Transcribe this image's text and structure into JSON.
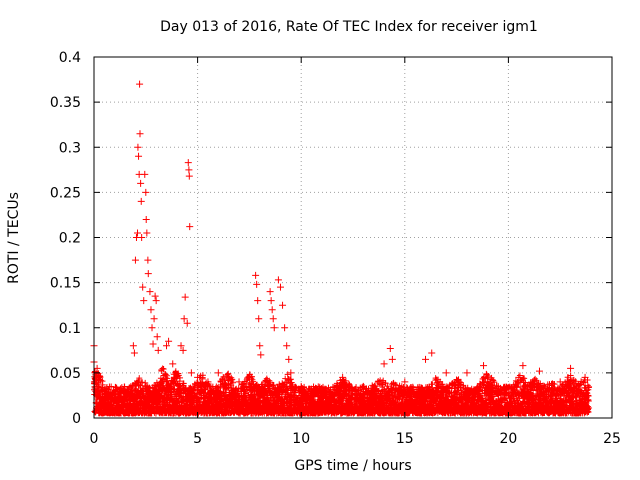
{
  "chart_data": {
    "type": "scatter",
    "title": "Day 013 of 2016, Rate Of TEC Index for receiver igm1",
    "xlabel": "GPS time / hours",
    "ylabel": "ROTI / TECUs",
    "xlim": [
      0,
      25
    ],
    "ylim": [
      0,
      0.4
    ],
    "x_ticks": [
      0,
      5,
      10,
      15,
      20,
      25
    ],
    "x_tick_labels": [
      "0",
      "5",
      "10",
      "15",
      "20",
      "25"
    ],
    "y_ticks": [
      0,
      0.05,
      0.1,
      0.15,
      0.2,
      0.25,
      0.3,
      0.35,
      0.4
    ],
    "y_tick_labels": [
      "0",
      "0.05",
      "0.1",
      "0.15",
      "0.2",
      "0.25",
      "0.3",
      "0.35",
      "0.4"
    ],
    "grid": true,
    "marker": "+",
    "color": "#ff0000",
    "series": [
      {
        "name": "ROTI",
        "points": [
          [
            0.0,
            0.08
          ],
          [
            0.0,
            0.062
          ],
          [
            0.05,
            0.05
          ],
          [
            0.1,
            0.045
          ],
          [
            0.15,
            0.055
          ],
          [
            0.2,
            0.035
          ],
          [
            0.3,
            0.028
          ],
          [
            0.5,
            0.02
          ],
          [
            0.8,
            0.018
          ],
          [
            1.0,
            0.022
          ],
          [
            1.3,
            0.02
          ],
          [
            1.6,
            0.025
          ],
          [
            1.9,
            0.08
          ],
          [
            1.95,
            0.072
          ],
          [
            2.0,
            0.175
          ],
          [
            2.05,
            0.2
          ],
          [
            2.1,
            0.205
          ],
          [
            2.12,
            0.3
          ],
          [
            2.15,
            0.29
          ],
          [
            2.18,
            0.27
          ],
          [
            2.2,
            0.37
          ],
          [
            2.22,
            0.315
          ],
          [
            2.25,
            0.26
          ],
          [
            2.28,
            0.24
          ],
          [
            2.3,
            0.2
          ],
          [
            2.35,
            0.145
          ],
          [
            2.4,
            0.13
          ],
          [
            2.45,
            0.27
          ],
          [
            2.5,
            0.25
          ],
          [
            2.52,
            0.22
          ],
          [
            2.55,
            0.205
          ],
          [
            2.6,
            0.175
          ],
          [
            2.62,
            0.16
          ],
          [
            2.7,
            0.14
          ],
          [
            2.75,
            0.12
          ],
          [
            2.8,
            0.1
          ],
          [
            2.85,
            0.082
          ],
          [
            2.9,
            0.11
          ],
          [
            2.95,
            0.135
          ],
          [
            3.0,
            0.13
          ],
          [
            3.05,
            0.09
          ],
          [
            3.1,
            0.075
          ],
          [
            3.5,
            0.08
          ],
          [
            3.6,
            0.085
          ],
          [
            3.8,
            0.06
          ],
          [
            4.2,
            0.08
          ],
          [
            4.3,
            0.075
          ],
          [
            4.35,
            0.11
          ],
          [
            4.4,
            0.134
          ],
          [
            4.5,
            0.105
          ],
          [
            4.55,
            0.283
          ],
          [
            4.58,
            0.275
          ],
          [
            4.6,
            0.268
          ],
          [
            4.62,
            0.212
          ],
          [
            4.7,
            0.05
          ],
          [
            5.0,
            0.045
          ],
          [
            5.5,
            0.04
          ],
          [
            6.0,
            0.05
          ],
          [
            6.5,
            0.045
          ],
          [
            7.0,
            0.04
          ],
          [
            7.5,
            0.045
          ],
          [
            7.8,
            0.158
          ],
          [
            7.85,
            0.148
          ],
          [
            7.9,
            0.13
          ],
          [
            7.95,
            0.11
          ],
          [
            8.0,
            0.08
          ],
          [
            8.05,
            0.07
          ],
          [
            8.5,
            0.14
          ],
          [
            8.55,
            0.13
          ],
          [
            8.6,
            0.12
          ],
          [
            8.65,
            0.11
          ],
          [
            8.7,
            0.1
          ],
          [
            8.9,
            0.153
          ],
          [
            9.0,
            0.145
          ],
          [
            9.1,
            0.125
          ],
          [
            9.2,
            0.1
          ],
          [
            9.3,
            0.08
          ],
          [
            9.4,
            0.065
          ],
          [
            9.5,
            0.05
          ],
          [
            10.0,
            0.035
          ],
          [
            11.0,
            0.03
          ],
          [
            12.0,
            0.045
          ],
          [
            13.0,
            0.035
          ],
          [
            14.0,
            0.06
          ],
          [
            14.3,
            0.077
          ],
          [
            14.4,
            0.065
          ],
          [
            15.0,
            0.04
          ],
          [
            16.0,
            0.065
          ],
          [
            16.3,
            0.072
          ],
          [
            17.0,
            0.05
          ],
          [
            18.0,
            0.05
          ],
          [
            18.8,
            0.058
          ],
          [
            19.5,
            0.035
          ],
          [
            20.5,
            0.045
          ],
          [
            20.7,
            0.058
          ],
          [
            21.5,
            0.052
          ],
          [
            22.5,
            0.04
          ],
          [
            23.0,
            0.055
          ],
          [
            23.7,
            0.045
          ]
        ]
      }
    ],
    "baseline_band": {
      "description": "dense noise floor",
      "x_range": [
        0,
        23.9
      ],
      "y_range": [
        0.005,
        0.035
      ],
      "peaks": [
        [
          0.1,
          0.055
        ],
        [
          2.2,
          0.045
        ],
        [
          3.3,
          0.06
        ],
        [
          4.0,
          0.055
        ],
        [
          5.2,
          0.05
        ],
        [
          6.4,
          0.055
        ],
        [
          7.5,
          0.05
        ],
        [
          8.3,
          0.045
        ],
        [
          9.3,
          0.05
        ],
        [
          11.0,
          0.03
        ],
        [
          12.0,
          0.045
        ],
        [
          13.0,
          0.035
        ],
        [
          13.8,
          0.045
        ],
        [
          14.5,
          0.04
        ],
        [
          15.2,
          0.035
        ],
        [
          16.5,
          0.045
        ],
        [
          17.5,
          0.045
        ],
        [
          19.0,
          0.055
        ],
        [
          20.6,
          0.05
        ],
        [
          21.3,
          0.045
        ],
        [
          22.0,
          0.04
        ],
        [
          23.0,
          0.05
        ],
        [
          23.7,
          0.045
        ]
      ]
    }
  }
}
